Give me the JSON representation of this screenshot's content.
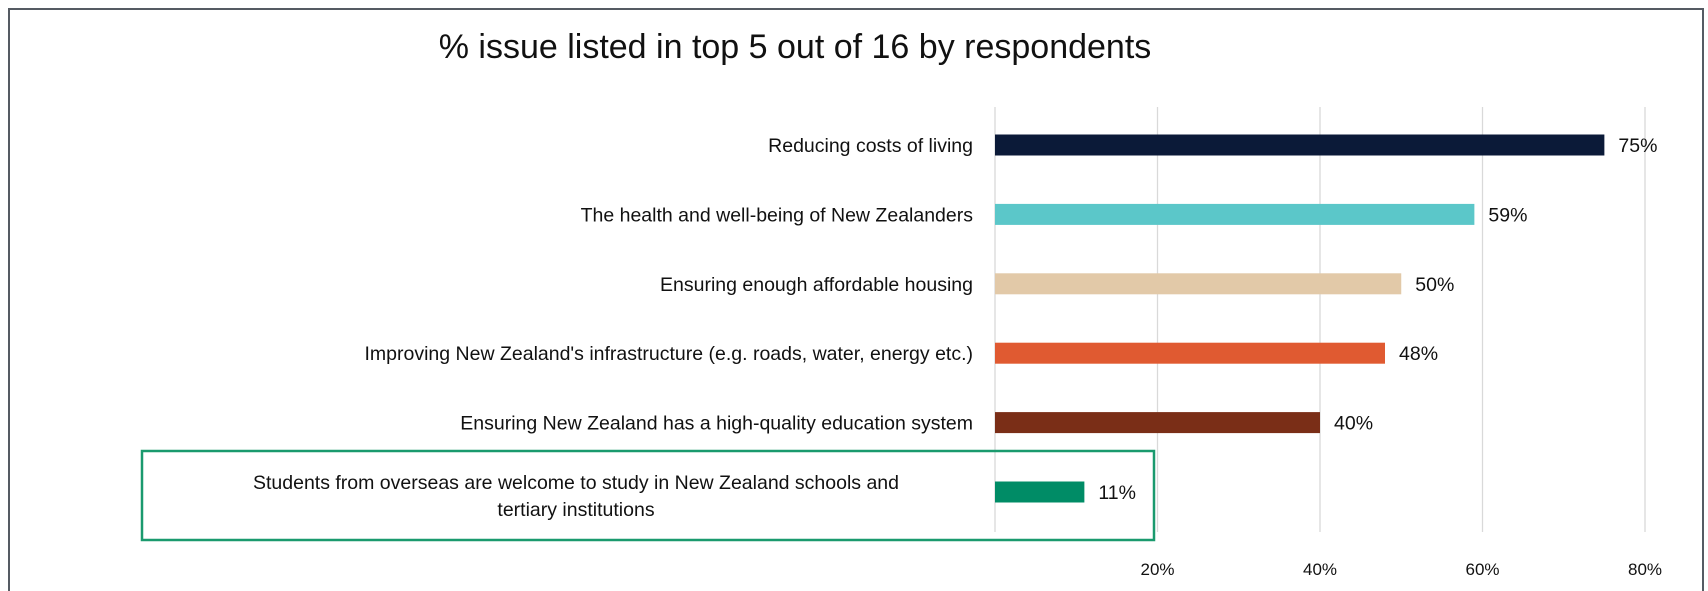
{
  "chart_data": {
    "type": "bar",
    "orientation": "horizontal",
    "title": "% issue listed in top 5 out of 16 by respondents",
    "xlabel": "",
    "ylabel": "",
    "categories": [
      "Reducing costs of living",
      "The health and well-being of New Zealanders",
      "Ensuring enough affordable housing",
      "Improving New Zealand's infrastructure (e.g. roads, water, energy etc.)",
      "Ensuring New Zealand has a high-quality education system",
      "Students from overseas are welcome to study in New Zealand schools and tertiary institutions"
    ],
    "values": [
      75,
      59,
      50,
      48,
      40,
      11
    ],
    "value_labels": [
      "75%",
      "59%",
      "50%",
      "48%",
      "40%",
      "11%"
    ],
    "bar_colors": [
      "#0b1a38",
      "#5bc7c9",
      "#e2c9a8",
      "#e05a31",
      "#7a2e17",
      "#008c66"
    ],
    "highlighted_category_index": 5,
    "highlight_color": "#1a9a6e",
    "xlim": [
      0,
      80
    ],
    "xticks": [
      20,
      40,
      60,
      80
    ],
    "xtick_labels": [
      "20%",
      "40%",
      "60%",
      "80%"
    ],
    "grid": "vertical",
    "grid_color": "#d9d9d9",
    "legend": "none"
  }
}
